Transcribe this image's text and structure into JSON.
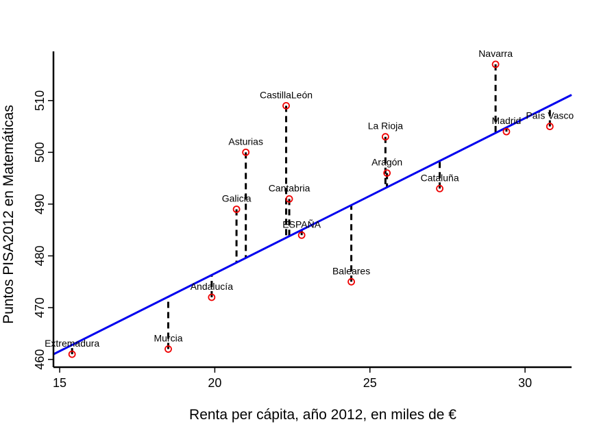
{
  "chart_data": {
    "type": "scatter",
    "title": "",
    "xlabel": "Renta per cápita, año 2012, en miles de €",
    "ylabel": "Puntos PISA2012 en Matemáticas",
    "xlim": [
      14.8,
      31.5
    ],
    "ylim": [
      458.5,
      519.5
    ],
    "xticks": [
      15,
      20,
      25,
      30
    ],
    "yticks": [
      460,
      470,
      480,
      490,
      500,
      510
    ],
    "regression_line": {
      "intercept": 416.6,
      "slope": 3.0,
      "color": "#0000ee"
    },
    "residuals_shown": true,
    "grid": false,
    "legend": "none",
    "point_color": "#ee0000",
    "points": [
      {
        "label": "Extremadura",
        "x": 15.4,
        "y": 461
      },
      {
        "label": "Murcia",
        "x": 18.5,
        "y": 462
      },
      {
        "label": "Andalucía",
        "x": 19.9,
        "y": 472
      },
      {
        "label": "Galicia",
        "x": 20.7,
        "y": 489
      },
      {
        "label": "Asturias",
        "x": 21.0,
        "y": 500
      },
      {
        "label": "CastillaLeón",
        "x": 22.3,
        "y": 509
      },
      {
        "label": "Cantabria",
        "x": 22.4,
        "y": 491
      },
      {
        "label": "ESPAÑA",
        "x": 22.8,
        "y": 484
      },
      {
        "label": "Baleares",
        "x": 24.4,
        "y": 475
      },
      {
        "label": "La Rioja",
        "x": 25.5,
        "y": 503
      },
      {
        "label": "Aragón",
        "x": 25.55,
        "y": 496
      },
      {
        "label": "Cataluña",
        "x": 27.25,
        "y": 493
      },
      {
        "label": "Navarra",
        "x": 29.05,
        "y": 517
      },
      {
        "label": "Madrid",
        "x": 29.4,
        "y": 504
      },
      {
        "label": "País Vasco",
        "x": 30.8,
        "y": 505
      }
    ]
  }
}
